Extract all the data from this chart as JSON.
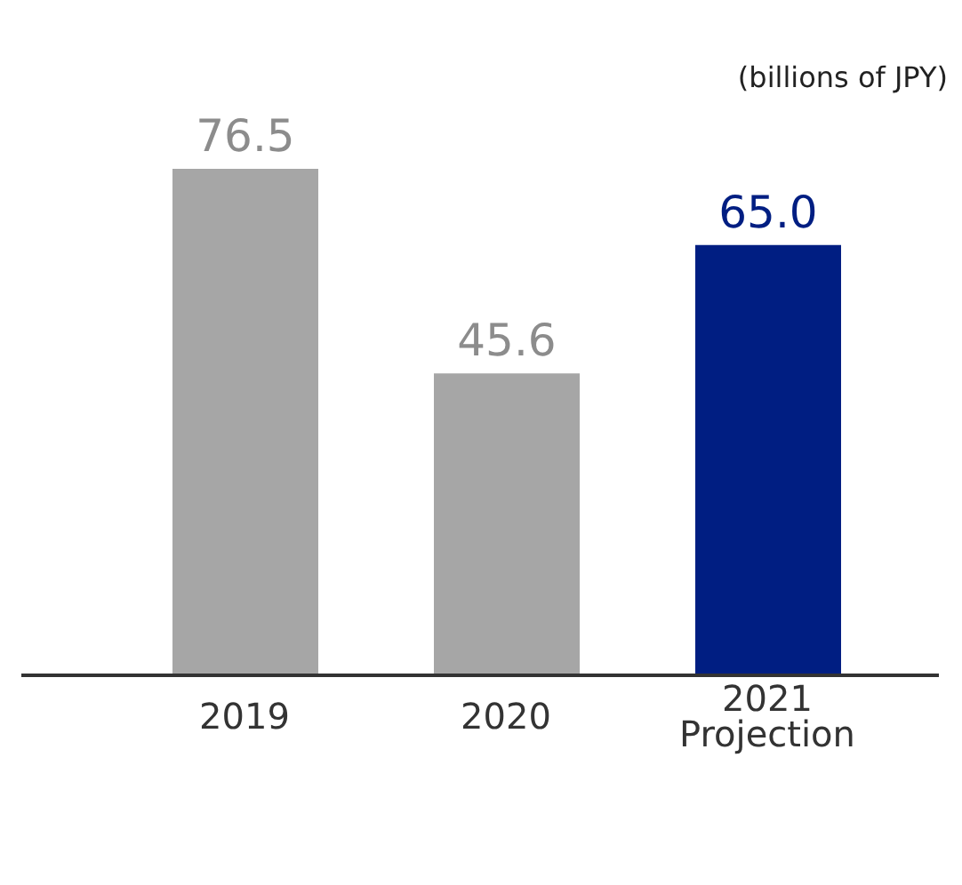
{
  "chart_data": {
    "type": "bar",
    "annotations": [
      "(billions of JPY)"
    ],
    "categories": [
      "2019",
      "2020",
      "2021\nProjection"
    ],
    "values": [
      76.5,
      45.6,
      65.0
    ],
    "value_labels": [
      "76.5",
      "45.6",
      "65.0"
    ],
    "colors": [
      "#a6a6a6",
      "#a6a6a6",
      "#001e82"
    ]
  }
}
